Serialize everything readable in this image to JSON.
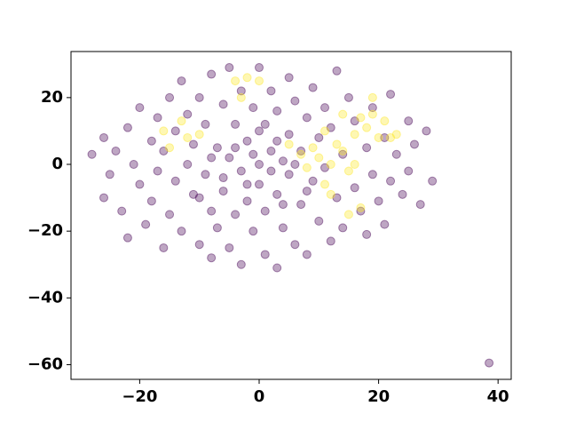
{
  "chart_data": {
    "type": "scatter",
    "xlim": [
      -31.5,
      42.2
    ],
    "ylim": [
      -64.4,
      33.8
    ],
    "xticks": [
      {
        "value": -20,
        "label": "−20"
      },
      0,
      20,
      40
    ],
    "yticks": [
      {
        "value": -60,
        "label": "−60"
      },
      {
        "value": -40,
        "label": "−40"
      },
      {
        "value": -20,
        "label": "−20"
      },
      0,
      20
    ],
    "series": [
      {
        "color": "#440154",
        "x": [
          -28,
          -26,
          -26,
          -25,
          -24,
          -23,
          -22,
          -22,
          -21,
          -20,
          -20,
          -19,
          -18,
          -18,
          -17,
          -17,
          -16,
          -16,
          -15,
          -15,
          -14,
          -14,
          -13,
          -13,
          -12,
          -12,
          -11,
          -11,
          -10,
          -10,
          -9,
          -9,
          -8,
          -8,
          -8,
          -7,
          -7,
          -6,
          -6,
          -5,
          -5,
          -5,
          -4,
          -4,
          -3,
          -3,
          -3,
          -2,
          -2,
          -1,
          -1,
          0,
          0,
          0,
          1,
          1,
          1,
          2,
          2,
          3,
          3,
          3,
          4,
          4,
          5,
          5,
          5,
          6,
          6,
          7,
          7,
          8,
          8,
          9,
          9,
          10,
          10,
          11,
          11,
          12,
          12,
          13,
          13,
          14,
          14,
          15,
          16,
          16,
          17,
          18,
          18,
          19,
          19,
          20,
          21,
          21,
          22,
          22,
          23,
          24,
          25,
          25,
          26,
          27,
          28,
          29,
          -6,
          -2,
          2,
          6,
          -10,
          -4,
          0,
          4,
          -8,
          8,
          -1,
          3,
          38.5
        ],
        "y": [
          3,
          8,
          -10,
          -3,
          4,
          -14,
          11,
          -22,
          0,
          17,
          -6,
          -18,
          7,
          -11,
          14,
          -2,
          -25,
          4,
          20,
          -15,
          -5,
          10,
          25,
          -20,
          0,
          15,
          -9,
          6,
          -24,
          20,
          -3,
          12,
          -28,
          27,
          -14,
          5,
          -19,
          18,
          -8,
          29,
          -25,
          2,
          12,
          -15,
          -2,
          22,
          -30,
          7,
          -11,
          17,
          -20,
          0,
          29,
          -6,
          12,
          -27,
          -14,
          4,
          22,
          -9,
          16,
          -31,
          1,
          -19,
          26,
          9,
          -3,
          -24,
          19,
          -12,
          4,
          14,
          -27,
          -5,
          23,
          8,
          -17,
          -1,
          17,
          -23,
          11,
          -10,
          28,
          3,
          -19,
          20,
          -7,
          13,
          -14,
          5,
          -21,
          -3,
          17,
          -11,
          8,
          -18,
          21,
          -5,
          3,
          -9,
          13,
          -2,
          6,
          -12,
          10,
          -5,
          -4,
          -6,
          -2,
          0,
          -10,
          5,
          10,
          -12,
          2,
          -8,
          3,
          7,
          -59.5
        ]
      },
      {
        "color": "#fde725",
        "x": [
          -16,
          -15,
          -13,
          -12,
          -10,
          -4,
          -3,
          -2,
          0,
          5,
          7,
          8,
          9,
          10,
          11,
          11,
          12,
          12,
          13,
          14,
          14,
          15,
          15,
          16,
          16,
          17,
          17,
          18,
          19,
          19,
          20,
          21,
          22,
          23
        ],
        "y": [
          10,
          5,
          13,
          8,
          9,
          25,
          20,
          26,
          25,
          6,
          3,
          -1,
          5,
          2,
          10,
          -6,
          -9,
          0,
          6,
          4,
          15,
          -2,
          -15,
          0,
          9,
          -13,
          14,
          11,
          20,
          15,
          8,
          13,
          8,
          9
        ]
      }
    ]
  }
}
